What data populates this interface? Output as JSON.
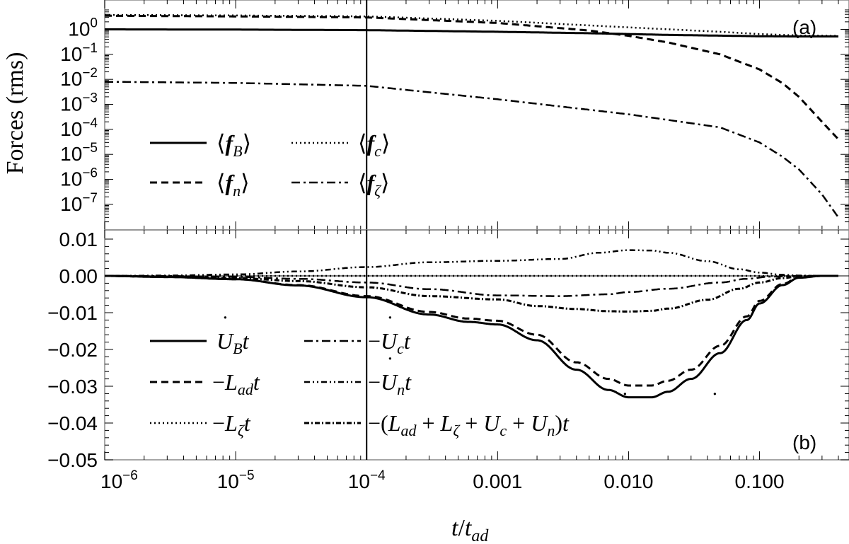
{
  "chart_data": [
    {
      "panel": "a",
      "type": "line",
      "panel_label": "(a)",
      "ylabel": "Forces (rms)",
      "xscale": "log",
      "yscale": "log",
      "xlim": [
        1e-06,
        0.4
      ],
      "ylim": [
        1.5e-08,
        6
      ],
      "ytick_labels": [
        {
          "value": 1,
          "mant": "10",
          "exp": "0"
        },
        {
          "value": 0.1,
          "mant": "10",
          "exp": "−1"
        },
        {
          "value": 0.01,
          "mant": "10",
          "exp": "−2"
        },
        {
          "value": 0.001,
          "mant": "10",
          "exp": "−3"
        },
        {
          "value": 0.0001,
          "mant": "10",
          "exp": "−4"
        },
        {
          "value": 1e-05,
          "mant": "10",
          "exp": "−5"
        },
        {
          "value": 1e-06,
          "mant": "10",
          "exp": "−6"
        },
        {
          "value": 1e-07,
          "mant": "10",
          "exp": "−7"
        }
      ],
      "legend_placement": "lower-left",
      "vline_x": 0.0001,
      "series": [
        {
          "key": "fB",
          "name": "⟨f_B⟩",
          "style": "solid",
          "x": [
            1e-06,
            1e-05,
            0.0001,
            0.001,
            0.005,
            0.01,
            0.02,
            0.05,
            0.1,
            0.2,
            0.4
          ],
          "y": [
            1.0,
            0.98,
            0.93,
            0.8,
            0.7,
            0.65,
            0.6,
            0.56,
            0.53,
            0.52,
            0.52
          ]
        },
        {
          "key": "fc",
          "name": "⟨f_c⟩",
          "style": "dotted",
          "x": [
            1e-06,
            1e-05,
            0.0001,
            0.001,
            0.01,
            0.05,
            0.1,
            0.2,
            0.4
          ],
          "y": [
            3.8,
            3.6,
            3.3,
            2.2,
            1.2,
            0.8,
            0.65,
            0.57,
            0.55
          ]
        },
        {
          "key": "fn",
          "name": "⟨f_n⟩",
          "style": "dashed",
          "x": [
            1e-06,
            1e-05,
            0.0001,
            0.001,
            0.005,
            0.01,
            0.02,
            0.05,
            0.1,
            0.15,
            0.2,
            0.3,
            0.4
          ],
          "y": [
            3.5,
            3.3,
            3.0,
            1.8,
            0.9,
            0.55,
            0.3,
            0.1,
            0.025,
            0.007,
            0.002,
            0.0002,
            4e-05
          ]
        },
        {
          "key": "fz",
          "name": "⟨f_ζ⟩",
          "style": "dashdot",
          "x": [
            1e-06,
            1e-05,
            0.0001,
            0.001,
            0.01,
            0.05,
            0.1,
            0.15,
            0.2,
            0.3,
            0.4
          ],
          "y": [
            0.008,
            0.0072,
            0.0055,
            0.0016,
            0.0004,
            0.00012,
            3e-05,
            8e-06,
            2.5e-06,
            2.5e-07,
            3e-08
          ]
        }
      ],
      "legend_items": [
        {
          "key": "fB",
          "style": "solid",
          "f": "f",
          "sub": "B"
        },
        {
          "key": "fc",
          "style": "dotted",
          "f": "f",
          "sub": "c"
        },
        {
          "key": "fn",
          "style": "dashed",
          "f": "f",
          "sub": "n"
        },
        {
          "key": "fz",
          "style": "dashdot",
          "f": "f",
          "sub": "ζ"
        }
      ]
    },
    {
      "panel": "b",
      "type": "line",
      "panel_label": "(b)",
      "xlabel": "t/t_ad",
      "xscale": "log",
      "yscale": "linear",
      "xlim": [
        1e-06,
        0.4
      ],
      "ylim": [
        -0.05,
        0.0125
      ],
      "xtick_labels": [
        {
          "value": 1e-06,
          "mant": "10",
          "exp": "−6"
        },
        {
          "value": 1e-05,
          "mant": "10",
          "exp": "−5"
        },
        {
          "value": 0.0001,
          "mant": "10",
          "exp": "−4"
        },
        {
          "value": 0.001,
          "text": "0.001"
        },
        {
          "value": 0.01,
          "text": "0.010"
        },
        {
          "value": 0.1,
          "text": "0.100"
        }
      ],
      "ytick_labels": [
        {
          "value": 0.01,
          "text": "0.01"
        },
        {
          "value": 0.0,
          "text": "0.00"
        },
        {
          "value": -0.01,
          "text": "−0.01"
        },
        {
          "value": -0.02,
          "text": "−0.02"
        },
        {
          "value": -0.03,
          "text": "−0.03"
        },
        {
          "value": -0.04,
          "text": "−0.04"
        },
        {
          "value": -0.05,
          "text": "−0.05"
        }
      ],
      "legend_placement": "lower-left",
      "vline_x": 0.0001,
      "series": [
        {
          "key": "UB",
          "style": "solid",
          "x": [
            1e-06,
            3e-06,
            1e-05,
            3e-05,
            0.0001,
            0.0003,
            0.0006,
            0.001,
            0.002,
            0.004,
            0.007,
            0.01,
            0.015,
            0.02,
            0.03,
            0.05,
            0.08,
            0.1,
            0.15,
            0.2,
            0.3,
            0.4
          ],
          "y": [
            0,
            -0.0003,
            -0.0009,
            -0.0026,
            -0.0058,
            -0.0105,
            -0.0125,
            -0.0132,
            -0.0175,
            -0.0255,
            -0.031,
            -0.033,
            -0.033,
            -0.0315,
            -0.028,
            -0.021,
            -0.012,
            -0.0075,
            -0.0025,
            -0.0005,
            0,
            0
          ]
        },
        {
          "key": "Lad",
          "style": "dashed",
          "x": [
            1e-06,
            3e-06,
            1e-05,
            3e-05,
            0.0001,
            0.0003,
            0.0006,
            0.001,
            0.002,
            0.004,
            0.007,
            0.01,
            0.015,
            0.02,
            0.03,
            0.05,
            0.08,
            0.1,
            0.15,
            0.2,
            0.3,
            0.4
          ],
          "y": [
            0,
            -0.0003,
            -0.0009,
            -0.0025,
            -0.0055,
            -0.0098,
            -0.0116,
            -0.0122,
            -0.016,
            -0.0235,
            -0.028,
            -0.0298,
            -0.0298,
            -0.0285,
            -0.0255,
            -0.019,
            -0.011,
            -0.0068,
            -0.0022,
            -0.0004,
            0,
            0
          ]
        },
        {
          "key": "Lz",
          "style": "dotted",
          "x": [
            1e-06,
            1e-05,
            0.0001,
            0.001,
            0.01,
            0.1,
            0.4
          ],
          "y": [
            0,
            0,
            0,
            0,
            0,
            0,
            0
          ]
        },
        {
          "key": "Uc",
          "style": "longdashdot",
          "x": [
            1e-06,
            3e-06,
            1e-05,
            3e-05,
            0.0001,
            0.0003,
            0.001,
            0.003,
            0.007,
            0.01,
            0.02,
            0.05,
            0.08,
            0.12,
            0.2,
            0.3,
            0.4
          ],
          "y": [
            0,
            -5e-05,
            -0.0003,
            -0.0008,
            -0.0018,
            -0.0036,
            -0.0053,
            -0.0055,
            -0.005,
            -0.0044,
            -0.0035,
            -0.0018,
            -0.0008,
            -0.0002,
            0,
            0,
            0
          ]
        },
        {
          "key": "Un",
          "style": "dashdotdot",
          "x": [
            1e-06,
            3e-06,
            1e-05,
            3e-05,
            0.0001,
            0.0003,
            0.001,
            0.003,
            0.006,
            0.01,
            0.015,
            0.02,
            0.04,
            0.07,
            0.1,
            0.15,
            0.2,
            0.3,
            0.4
          ],
          "y": [
            0,
            0.0001,
            0.0004,
            0.0012,
            0.0024,
            0.0037,
            0.0041,
            0.0046,
            0.0063,
            0.007,
            0.0069,
            0.0063,
            0.004,
            0.0018,
            0.0009,
            0.0003,
            0.0001,
            0,
            0
          ]
        },
        {
          "key": "Sum",
          "style": "densedashdot",
          "x": [
            1e-06,
            3e-06,
            1e-05,
            3e-05,
            0.0001,
            0.0003,
            0.001,
            0.002,
            0.004,
            0.007,
            0.01,
            0.015,
            0.02,
            0.04,
            0.07,
            0.1,
            0.15,
            0.2,
            0.3,
            0.4
          ],
          "y": [
            0,
            -0.0002,
            -0.0006,
            -0.0014,
            -0.0031,
            -0.0055,
            -0.0064,
            -0.0082,
            -0.009,
            -0.0096,
            -0.0097,
            -0.0095,
            -0.0089,
            -0.0065,
            -0.0035,
            -0.0018,
            -0.0006,
            -0.0001,
            0,
            0
          ]
        }
      ],
      "legend_items": [
        {
          "key": "UB",
          "style": "solid"
        },
        {
          "key": "Uc",
          "style": "longdashdot"
        },
        {
          "key": "Lad",
          "style": "dashed"
        },
        {
          "key": "Un",
          "style": "dashdotdot"
        },
        {
          "key": "Lz",
          "style": "dotted"
        },
        {
          "key": "Sum",
          "style": "densedashdot"
        }
      ]
    }
  ]
}
